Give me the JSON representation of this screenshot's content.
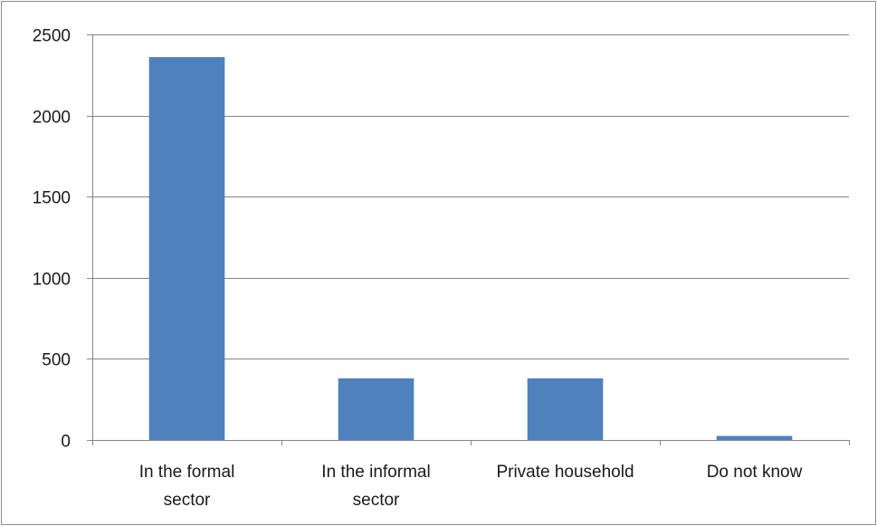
{
  "chart_data": {
    "type": "bar",
    "title": "",
    "xlabel": "",
    "ylabel": "",
    "categories": [
      [
        "In the formal",
        "sector"
      ],
      [
        "In the informal",
        "sector"
      ],
      [
        "Private household"
      ],
      [
        "Do not know"
      ]
    ],
    "values": [
      2360,
      380,
      380,
      25
    ],
    "ylim": [
      0,
      2500
    ],
    "yticks": [
      0,
      500,
      1000,
      1500,
      2000,
      2500
    ],
    "grid": true,
    "legend": "none",
    "colors": {
      "bar": "#4f81bd",
      "grid": "#868686",
      "axis": "#868686"
    }
  }
}
